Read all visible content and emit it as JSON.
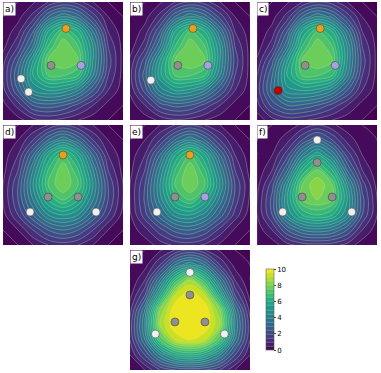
{
  "chart_data": {
    "type": "contour",
    "tick_labels": false,
    "x": [
      -4,
      -3,
      -2,
      -1,
      0,
      1,
      2,
      3,
      4
    ],
    "y": [
      -4,
      -3,
      -2,
      -1,
      0,
      1,
      2,
      3,
      4
    ],
    "xlim": [
      -4,
      4
    ],
    "ylim": [
      -4,
      4
    ],
    "colorbar": {
      "range": [
        0,
        10
      ],
      "ticks": [
        0,
        2,
        4,
        6,
        8,
        10
      ]
    },
    "panels": [
      {
        "title": "a)",
        "z": [
          [
            0,
            0.3,
            0.8,
            1,
            0.8,
            0.5,
            0.2,
            0,
            0
          ],
          [
            0.3,
            1.2,
            2.5,
            2.8,
            2.5,
            1.8,
            1,
            0.3,
            0
          ],
          [
            0.8,
            2.5,
            4.5,
            5,
            4.8,
            4,
            2.5,
            1,
            0.2
          ],
          [
            1,
            3,
            5.5,
            7,
            7,
            6.5,
            4,
            1.5,
            0.3
          ],
          [
            0.8,
            2.5,
            5,
            7.5,
            8,
            7.5,
            4.5,
            1.8,
            0.3
          ],
          [
            0.3,
            1.5,
            3.5,
            6.5,
            8,
            7,
            4.5,
            1.5,
            0.3
          ],
          [
            0.1,
            0.8,
            2.5,
            5.5,
            7,
            6,
            3.5,
            1,
            0.2
          ],
          [
            0,
            0.3,
            1.2,
            3,
            4,
            3.3,
            1.8,
            0.5,
            0
          ],
          [
            0,
            0,
            0.4,
            1,
            1.5,
            1.2,
            0.5,
            0,
            0
          ]
        ],
        "atoms": {
          "x": [
            0.2,
            -0.8,
            1.2,
            -2.8,
            -2.3
          ],
          "y": [
            2.2,
            -0.3,
            -0.3,
            -1.2,
            -2.1
          ],
          "colors": [
            "#e8a020",
            "#909090",
            "#a8a0e0",
            "#f0f0f0",
            "#f0f0f0"
          ]
        }
      },
      {
        "title": "b)",
        "z": [
          [
            0,
            0.2,
            0.6,
            0.9,
            0.8,
            0.5,
            0.2,
            0,
            0
          ],
          [
            0.2,
            1,
            2.2,
            2.7,
            2.5,
            1.8,
            1,
            0.3,
            0
          ],
          [
            0.6,
            2.2,
            4.2,
            5,
            4.8,
            4,
            2.5,
            1,
            0.2
          ],
          [
            0.8,
            2.8,
            5.3,
            7,
            7,
            6.5,
            4,
            1.5,
            0.3
          ],
          [
            0.6,
            2.3,
            5,
            7.5,
            8,
            7.5,
            4.5,
            1.8,
            0.3
          ],
          [
            0.2,
            1.3,
            3.5,
            6.5,
            8,
            7,
            4.5,
            1.5,
            0.3
          ],
          [
            0.1,
            0.7,
            2.5,
            5.5,
            7,
            6,
            3.5,
            1,
            0.2
          ],
          [
            0,
            0.3,
            1.2,
            3,
            4,
            3.3,
            1.8,
            0.5,
            0
          ],
          [
            0,
            0,
            0.4,
            1,
            1.5,
            1.2,
            0.5,
            0,
            0
          ]
        ],
        "atoms": {
          "x": [
            0.2,
            -0.8,
            1.2,
            -2.6
          ],
          "y": [
            2.2,
            -0.3,
            -0.3,
            -1.3
          ],
          "colors": [
            "#e8a020",
            "#909090",
            "#a8a0e0",
            "#f0f0f0"
          ]
        }
      },
      {
        "title": "c)",
        "z": [
          [
            0.2,
            0.8,
            1.2,
            1.1,
            0.8,
            0.5,
            0.2,
            0,
            0
          ],
          [
            0.8,
            2.2,
            3,
            2.9,
            2.5,
            1.8,
            1,
            0.3,
            0
          ],
          [
            1.2,
            3.2,
            4.8,
            5,
            4.8,
            4,
            2.5,
            1,
            0.2
          ],
          [
            1,
            3,
            5.5,
            7,
            7,
            6.5,
            4,
            1.5,
            0.3
          ],
          [
            0.6,
            2.3,
            5,
            7.5,
            8,
            7.5,
            4.5,
            1.8,
            0.3
          ],
          [
            0.2,
            1.3,
            3.5,
            6.5,
            8,
            7,
            4.5,
            1.5,
            0.3
          ],
          [
            0.1,
            0.7,
            2.5,
            5.5,
            7,
            6,
            3.5,
            1,
            0.2
          ],
          [
            0,
            0.3,
            1.2,
            3,
            4,
            3.3,
            1.8,
            0.5,
            0
          ],
          [
            0,
            0,
            0.4,
            1,
            1.5,
            1.2,
            0.5,
            0,
            0
          ]
        ],
        "atoms": {
          "x": [
            0.2,
            -0.8,
            1.2,
            -2.6
          ],
          "y": [
            2.2,
            -0.3,
            -0.3,
            -2.0
          ],
          "colors": [
            "#e8a020",
            "#909090",
            "#a8a0e0",
            "#c00000"
          ]
        }
      },
      {
        "title": "d)",
        "z": [
          [
            0,
            0,
            0.5,
            1,
            1.2,
            1,
            0.5,
            0,
            0
          ],
          [
            0,
            0.5,
            1.5,
            2.5,
            3,
            2.5,
            1.5,
            0.5,
            0
          ],
          [
            0.3,
            1.5,
            3,
            4.5,
            5,
            4.5,
            3,
            1.5,
            0.3
          ],
          [
            0.5,
            2,
            4,
            6,
            7,
            6,
            4,
            2,
            0.5
          ],
          [
            0.5,
            2,
            4.5,
            7,
            8,
            7,
            4.5,
            2,
            0.5
          ],
          [
            0.3,
            1.5,
            4,
            6.5,
            8,
            6.5,
            4,
            1.5,
            0.3
          ],
          [
            0.2,
            1,
            3,
            5.5,
            7,
            5.5,
            3,
            1,
            0.2
          ],
          [
            0,
            0.5,
            1.5,
            3,
            4,
            3,
            1.5,
            0.5,
            0
          ],
          [
            0,
            0,
            0.5,
            1,
            1.5,
            1,
            0.5,
            0,
            0
          ]
        ],
        "atoms": {
          "x": [
            0,
            -1,
            1,
            -2.2,
            2.2
          ],
          "y": [
            2,
            -0.8,
            -0.8,
            -1.8,
            -1.8
          ],
          "colors": [
            "#e8a020",
            "#909090",
            "#909090",
            "#f0f0f0",
            "#f0f0f0"
          ]
        }
      },
      {
        "title": "e)",
        "z": [
          [
            0,
            0.2,
            0.7,
            1.1,
            1.2,
            0.9,
            0.4,
            0,
            0
          ],
          [
            0.2,
            0.8,
            1.8,
            2.7,
            3,
            2.4,
            1.3,
            0.4,
            0
          ],
          [
            0.4,
            1.8,
            3.3,
            4.7,
            5,
            4.3,
            2.8,
            1.3,
            0.2
          ],
          [
            0.5,
            2.1,
            4.2,
            6.2,
            7,
            5.8,
            3.8,
            1.8,
            0.4
          ],
          [
            0.5,
            2,
            4.5,
            7,
            8,
            7,
            4.5,
            2,
            0.5
          ],
          [
            0.3,
            1.5,
            4,
            6.5,
            8,
            6.5,
            4,
            1.5,
            0.3
          ],
          [
            0.2,
            1,
            3,
            5.5,
            7,
            5.5,
            3,
            1,
            0.2
          ],
          [
            0,
            0.5,
            1.5,
            3,
            4,
            3,
            1.5,
            0.5,
            0
          ],
          [
            0,
            0,
            0.5,
            1,
            1.5,
            1,
            0.5,
            0,
            0
          ]
        ],
        "atoms": {
          "x": [
            0,
            -1,
            1,
            -2.2
          ],
          "y": [
            2,
            -0.8,
            -0.8,
            -1.8
          ],
          "colors": [
            "#e8a020",
            "#909090",
            "#a8a0e0",
            "#f0f0f0"
          ]
        }
      },
      {
        "title": "f)",
        "z": [
          [
            0,
            0.2,
            0.8,
            1.2,
            1.3,
            1.2,
            0.8,
            0.2,
            0
          ],
          [
            0.2,
            1,
            2.5,
            3.5,
            3.8,
            3.5,
            2.5,
            1,
            0.2
          ],
          [
            0.5,
            2,
            4.5,
            6,
            6.5,
            6,
            4.5,
            2,
            0.5
          ],
          [
            0.5,
            2.2,
            5,
            7.5,
            8,
            7.5,
            5,
            2.2,
            0.5
          ],
          [
            0.3,
            1.8,
            4.5,
            7.5,
            8.5,
            7.5,
            4.5,
            1.8,
            0.3
          ],
          [
            0.1,
            1,
            3,
            6,
            7.5,
            6,
            3,
            1,
            0.1
          ],
          [
            0,
            0.5,
            1.8,
            4,
            5.5,
            4,
            1.8,
            0.5,
            0
          ],
          [
            0,
            0.2,
            0.8,
            2,
            3,
            2,
            0.8,
            0.2,
            0
          ],
          [
            0,
            0,
            0.2,
            0.6,
            1,
            0.6,
            0.2,
            0,
            0
          ]
        ],
        "atoms": {
          "x": [
            0,
            -1,
            1,
            0,
            -2.3,
            2.3
          ],
          "y": [
            1.5,
            -0.8,
            -0.8,
            3,
            -1.8,
            -1.8
          ],
          "colors": [
            "#909090",
            "#909090",
            "#909090",
            "#f0f0f0",
            "#f0f0f0",
            "#f0f0f0"
          ]
        }
      },
      {
        "title": "g)",
        "z": [
          [
            0,
            0.5,
            1.5,
            2,
            2.2,
            2,
            1.5,
            0.5,
            0
          ],
          [
            0.5,
            2,
            4,
            5.5,
            6,
            5.5,
            4,
            2,
            0.5
          ],
          [
            1,
            3.5,
            7,
            9,
            9.5,
            9,
            7,
            3.5,
            1
          ],
          [
            1.2,
            4,
            8.5,
            10,
            10,
            10,
            8.5,
            4,
            1.2
          ],
          [
            0.8,
            3.5,
            8,
            10,
            10,
            10,
            8,
            3.5,
            0.8
          ],
          [
            0.3,
            2,
            5.5,
            9,
            10,
            9,
            5.5,
            2,
            0.3
          ],
          [
            0,
            1,
            3.5,
            6.5,
            8.5,
            6.5,
            3.5,
            1,
            0
          ],
          [
            0,
            0.3,
            1.5,
            3.5,
            4.5,
            3.5,
            1.5,
            0.3,
            0
          ],
          [
            0,
            0,
            0.4,
            1,
            1.5,
            1,
            0.4,
            0,
            0
          ]
        ],
        "atoms": {
          "x": [
            0,
            -1,
            1,
            0,
            -2.3,
            2.3
          ],
          "y": [
            1,
            -0.8,
            -0.8,
            2.5,
            -1.6,
            -1.6
          ],
          "colors": [
            "#909090",
            "#909090",
            "#909090",
            "#f0f0f0",
            "#f0f0f0",
            "#f0f0f0"
          ]
        }
      }
    ]
  }
}
